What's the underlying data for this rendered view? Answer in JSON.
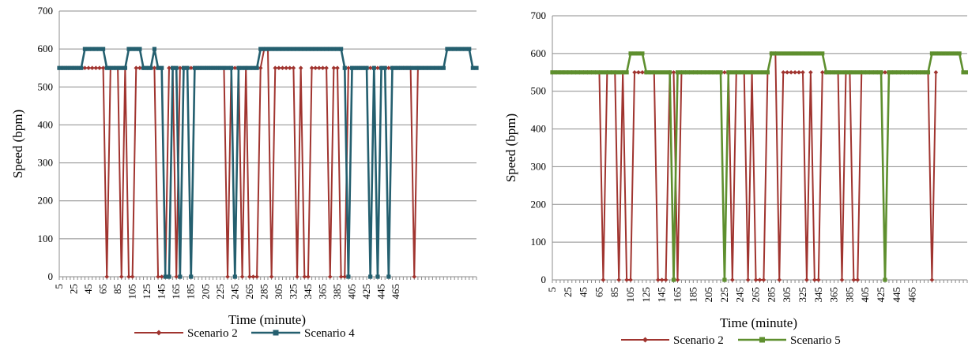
{
  "chart_data": [
    {
      "type": "line",
      "xlabel": "Time (minute)",
      "ylabel": "Speed (bpm)",
      "ylim": [
        0,
        700
      ],
      "yticks": [
        0,
        100,
        200,
        300,
        400,
        500,
        600,
        700
      ],
      "x_start": 5,
      "x_step": 5,
      "x_tick_labels": [
        "5",
        "25",
        "45",
        "65",
        "85",
        "105",
        "125",
        "145",
        "165",
        "185",
        "205",
        "225",
        "245",
        "265",
        "285",
        "305",
        "325",
        "345",
        "365",
        "385",
        "405",
        "425",
        "445",
        "465"
      ],
      "grid": "horizontal",
      "legend": "bottom",
      "series": [
        {
          "name": "Scenario 2",
          "color": "#A0342F",
          "marker": "diamond",
          "values": [
            550,
            550,
            550,
            550,
            550,
            550,
            550,
            550,
            550,
            550,
            550,
            550,
            550,
            0,
            550,
            550,
            550,
            0,
            550,
            0,
            0,
            550,
            550,
            550,
            550,
            550,
            550,
            0,
            0,
            0,
            550,
            550,
            0,
            550,
            550,
            550,
            550,
            550,
            550,
            550,
            550,
            550,
            550,
            550,
            550,
            550,
            0,
            550,
            550,
            550,
            0,
            550,
            0,
            0,
            0,
            550,
            600,
            600,
            0,
            550,
            550,
            550,
            550,
            550,
            550,
            0,
            550,
            0,
            0,
            550,
            550,
            550,
            550,
            550,
            0,
            550,
            550,
            0,
            0,
            550,
            550,
            550,
            550,
            550,
            550,
            550,
            550,
            550,
            550,
            550,
            550,
            550,
            550,
            550,
            550,
            550,
            550,
            0,
            550
          ]
        },
        {
          "name": "Scenario 4",
          "color": "#245F6F",
          "marker": "square",
          "values": [
            550,
            550,
            550,
            550,
            550,
            550,
            550,
            600,
            600,
            600,
            600,
            600,
            600,
            550,
            550,
            550,
            550,
            550,
            550,
            600,
            600,
            600,
            600,
            550,
            550,
            550,
            600,
            550,
            550,
            0,
            0,
            550,
            550,
            0,
            550,
            550,
            0,
            550,
            550,
            550,
            550,
            550,
            550,
            550,
            550,
            550,
            550,
            550,
            0,
            550,
            550,
            550,
            550,
            550,
            550,
            600,
            600,
            600,
            600,
            600,
            600,
            600,
            600,
            600,
            600,
            600,
            600,
            600,
            600,
            600,
            600,
            600,
            600,
            600,
            600,
            600,
            600,
            600,
            550,
            0,
            550,
            550,
            550,
            550,
            550,
            0,
            550,
            0,
            550,
            550,
            0,
            550,
            550,
            550,
            550,
            550,
            550,
            550,
            550,
            550,
            550,
            550,
            550,
            550,
            550,
            550,
            600,
            600,
            600,
            600,
            600,
            600,
            600,
            550,
            550
          ]
        }
      ]
    },
    {
      "type": "line",
      "xlabel": "Time (minute)",
      "ylabel": "Speed (bpm)",
      "ylim": [
        0,
        700
      ],
      "yticks": [
        0,
        100,
        200,
        300,
        400,
        500,
        600,
        700
      ],
      "x_start": 5,
      "x_step": 5,
      "x_tick_labels": [
        "5",
        "25",
        "45",
        "65",
        "85",
        "105",
        "125",
        "145",
        "165",
        "185",
        "205",
        "225",
        "245",
        "265",
        "285",
        "305",
        "325",
        "345",
        "365",
        "385",
        "405",
        "425",
        "445",
        "465"
      ],
      "grid": "horizontal",
      "legend": "bottom",
      "series": [
        {
          "name": "Scenario 2",
          "color": "#A0342F",
          "marker": "diamond",
          "values": [
            550,
            550,
            550,
            550,
            550,
            550,
            550,
            550,
            550,
            550,
            550,
            550,
            550,
            0,
            550,
            550,
            550,
            0,
            550,
            0,
            0,
            550,
            550,
            550,
            550,
            550,
            550,
            0,
            0,
            0,
            550,
            550,
            0,
            550,
            550,
            550,
            550,
            550,
            550,
            550,
            550,
            550,
            550,
            550,
            550,
            550,
            0,
            550,
            550,
            550,
            0,
            550,
            0,
            0,
            0,
            550,
            600,
            600,
            0,
            550,
            550,
            550,
            550,
            550,
            550,
            0,
            550,
            0,
            0,
            550,
            550,
            550,
            550,
            550,
            0,
            550,
            550,
            0,
            0,
            550,
            550,
            550,
            550,
            550,
            550,
            550,
            550,
            550,
            550,
            550,
            550,
            550,
            550,
            550,
            550,
            550,
            550,
            0,
            550
          ]
        },
        {
          "name": "Scenario 5",
          "color": "#5E8F2E",
          "marker": "square",
          "values": [
            550,
            550,
            550,
            550,
            550,
            550,
            550,
            550,
            550,
            550,
            550,
            550,
            550,
            550,
            550,
            550,
            550,
            550,
            550,
            550,
            600,
            600,
            600,
            600,
            550,
            550,
            550,
            550,
            550,
            550,
            550,
            0,
            550,
            550,
            550,
            550,
            550,
            550,
            550,
            550,
            550,
            550,
            550,
            550,
            0,
            550,
            550,
            550,
            550,
            550,
            550,
            550,
            550,
            550,
            550,
            550,
            600,
            600,
            600,
            600,
            600,
            600,
            600,
            600,
            600,
            600,
            600,
            600,
            600,
            600,
            550,
            550,
            550,
            550,
            550,
            550,
            550,
            550,
            550,
            550,
            550,
            550,
            550,
            550,
            550,
            0,
            550,
            550,
            550,
            550,
            550,
            550,
            550,
            550,
            550,
            550,
            550,
            600,
            600,
            600,
            600,
            600,
            600,
            600,
            600,
            550,
            550
          ]
        }
      ]
    }
  ]
}
